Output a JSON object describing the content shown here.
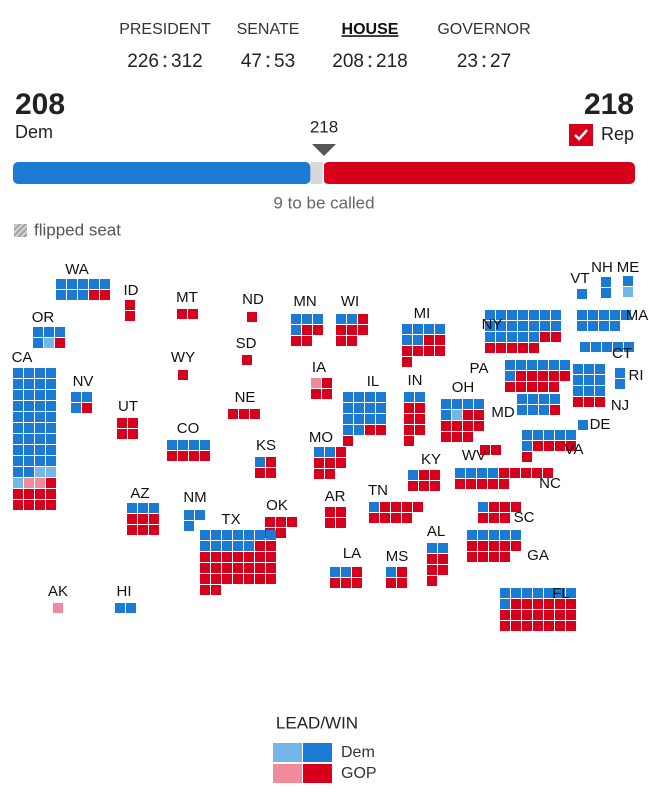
{
  "tabs": [
    {
      "label": "PRESIDENT",
      "dem": 226,
      "rep": 312,
      "active": false
    },
    {
      "label": "SENATE",
      "dem": 47,
      "rep": 53,
      "active": false
    },
    {
      "label": "HOUSE",
      "dem": 208,
      "rep": 218,
      "active": true
    },
    {
      "label": "GOVERNOR",
      "dem": 23,
      "rep": 27,
      "active": false
    }
  ],
  "balance": {
    "dem": {
      "seats": 208,
      "label": "Dem"
    },
    "rep": {
      "seats": 218,
      "label": "Rep"
    },
    "majority": 218,
    "uncalled": {
      "value": 9,
      "label": "9 to be called"
    }
  },
  "flipped_label": "flipped seat",
  "colors": {
    "dem": "#1a7ad4",
    "rep": "#d6001c",
    "dem_lead": "#74b6e8",
    "rep_lead": "#f08a9c",
    "uncalled": "#d8d8d8"
  },
  "states": [
    {
      "label": "WA",
      "dem": 8,
      "rep": 2
    },
    {
      "label": "OR",
      "dem": 4,
      "dem_lead": 1,
      "rep": 1
    },
    {
      "label": "CA",
      "dem": 38,
      "dem_lead": 3,
      "rep_lead": 2,
      "rep": 9
    },
    {
      "label": "AK",
      "rep_lead": 1
    },
    {
      "label": "HI",
      "dem": 2
    },
    {
      "label": "NV",
      "dem": 3,
      "rep": 1
    },
    {
      "label": "ID",
      "rep": 2
    },
    {
      "label": "MT",
      "rep": 2
    },
    {
      "label": "WY",
      "rep": 1
    },
    {
      "label": "UT",
      "rep": 4
    },
    {
      "label": "CO",
      "dem": 4,
      "rep": 4
    },
    {
      "label": "AZ",
      "dem": 3,
      "rep": 6
    },
    {
      "label": "NM",
      "dem": 3
    },
    {
      "label": "ND",
      "rep": 1
    },
    {
      "label": "SD",
      "rep": 1
    },
    {
      "label": "NE",
      "rep": 3
    },
    {
      "label": "KS",
      "dem": 1,
      "rep": 3
    },
    {
      "label": "OK",
      "rep": 5
    },
    {
      "label": "TX",
      "dem": 12,
      "rep": 25
    },
    {
      "label": "MN",
      "dem": 4,
      "rep": 4
    },
    {
      "label": "IA",
      "rep_lead": 1,
      "rep": 3
    },
    {
      "label": "MO",
      "dem": 2,
      "rep": 6
    },
    {
      "label": "AR",
      "rep": 4
    },
    {
      "label": "LA",
      "dem": 2,
      "rep": 4
    },
    {
      "label": "WI",
      "dem": 2,
      "rep": 6
    },
    {
      "label": "IL",
      "dem": 14,
      "rep": 3
    },
    {
      "label": "MI",
      "dem": 6,
      "rep": 7
    },
    {
      "label": "IN",
      "dem": 2,
      "rep": 7
    },
    {
      "label": "OH",
      "dem": 5,
      "dem_lead": 1,
      "rep": 9
    },
    {
      "label": "KY",
      "dem": 1,
      "rep": 5
    },
    {
      "label": "TN",
      "dem": 1,
      "rep": 8
    },
    {
      "label": "MS",
      "dem": 1,
      "rep": 3
    },
    {
      "label": "AL",
      "dem": 2,
      "rep": 5
    },
    {
      "label": "GA",
      "dem": 5,
      "rep": 9
    },
    {
      "label": "SC",
      "dem": 1,
      "rep": 6
    },
    {
      "label": "NC",
      "dem": 4,
      "rep": 10
    },
    {
      "label": "VA",
      "dem": 6,
      "rep": 5
    },
    {
      "label": "WV",
      "rep": 2
    },
    {
      "label": "FL",
      "dem": 8,
      "rep": 20
    },
    {
      "label": "PA",
      "dem": 7,
      "rep": 10
    },
    {
      "label": "NY",
      "dem": 19,
      "rep": 7
    },
    {
      "label": "NJ",
      "dem": 9,
      "rep": 3
    },
    {
      "label": "MD",
      "dem": 7,
      "rep": 1
    },
    {
      "label": "DE",
      "dem": 1
    },
    {
      "label": "CT",
      "dem": 5
    },
    {
      "label": "RI",
      "dem": 2
    },
    {
      "label": "MA",
      "dem": 9
    },
    {
      "label": "VT",
      "dem": 1
    },
    {
      "label": "NH",
      "dem": 2
    },
    {
      "label": "ME",
      "dem": 1,
      "dem_lead": 1
    }
  ],
  "legend": {
    "title": "LEAD/WIN",
    "dem": "Dem",
    "rep": "GOP"
  }
}
